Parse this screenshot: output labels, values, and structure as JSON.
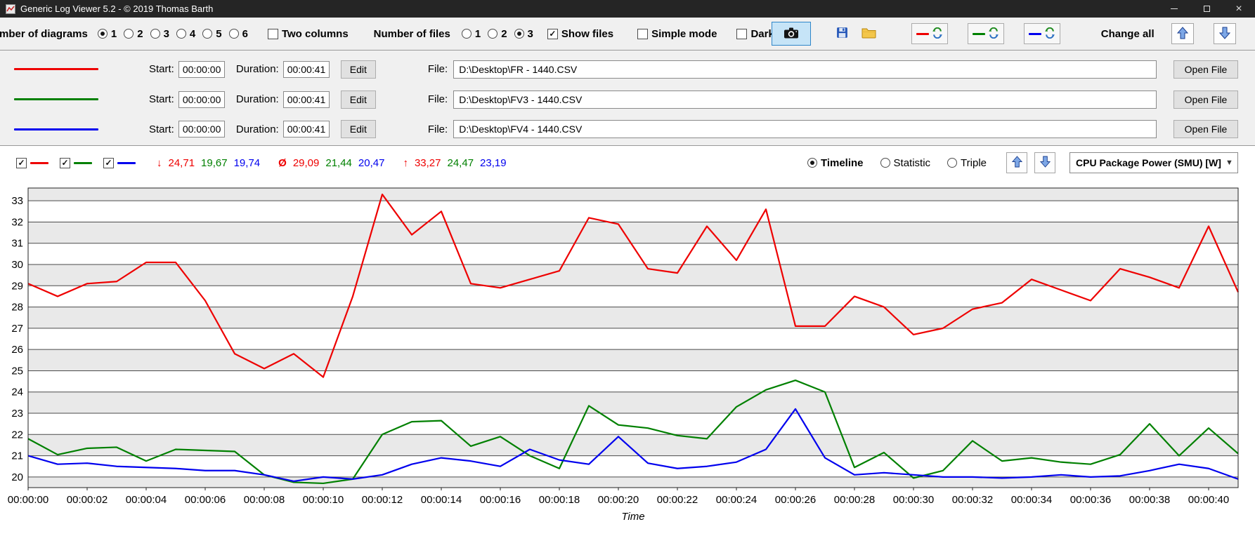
{
  "window": {
    "title": "Generic Log Viewer 5.2 - © 2019 Thomas Barth",
    "controls": {
      "close": "×"
    }
  },
  "toolbar": {
    "diagrams_label": "Number of diagrams",
    "diagram_options": [
      "1",
      "2",
      "3",
      "4",
      "5",
      "6"
    ],
    "diagrams_selected": "1",
    "two_columns_label": "Two columns",
    "files_label": "Number of files",
    "file_count_options": [
      "1",
      "2",
      "3"
    ],
    "file_count_selected": "3",
    "show_files_label": "Show files",
    "show_files_checked": true,
    "simple_mode_label": "Simple mode",
    "simple_mode_checked": false,
    "dark_label": "Dark",
    "dark_checked": false,
    "change_all_label": "Change all"
  },
  "file_row_labels": {
    "start": "Start:",
    "duration": "Duration:",
    "edit": "Edit",
    "file": "File:",
    "open": "Open File"
  },
  "files": [
    {
      "color": "#ee0000",
      "start": "00:00:00",
      "duration": "00:00:41",
      "path": "D:\\Desktop\\FR - 1440.CSV"
    },
    {
      "color": "#008000",
      "start": "00:00:00",
      "duration": "00:00:41",
      "path": "D:\\Desktop\\FV3 - 1440.CSV"
    },
    {
      "color": "#0000ee",
      "start": "00:00:00",
      "duration": "00:00:41",
      "path": "D:\\Desktop\\FV4 - 1440.CSV"
    }
  ],
  "legend": {
    "series_visible": [
      true,
      true,
      true
    ],
    "min_symbol": "↓",
    "min_values": [
      "24,71",
      "19,67",
      "19,74"
    ],
    "avg_symbol": "Ø",
    "avg_values": [
      "29,09",
      "21,44",
      "20,47"
    ],
    "max_symbol": "↑",
    "max_values": [
      "33,27",
      "24,47",
      "23,19"
    ]
  },
  "view_modes": {
    "options": [
      "Timeline",
      "Statistic",
      "Triple"
    ],
    "selected": "Timeline"
  },
  "measurement": {
    "selected": "CPU Package Power (SMU) [W]"
  },
  "colors": {
    "red_series": "#ee0000",
    "green_series": "#008000",
    "blue_series": "#0000ee",
    "camera_button_highlight": "#c6e4f7",
    "band_gray": "#e9e9e9"
  },
  "chart_data": {
    "type": "line",
    "xlabel": "Time",
    "x_max_seconds": 41,
    "x_tick_step_seconds": 2,
    "x_tick_labels": [
      "00:00:00",
      "00:00:02",
      "00:00:04",
      "00:00:06",
      "00:00:08",
      "00:00:10",
      "00:00:12",
      "00:00:14",
      "00:00:16",
      "00:00:18",
      "00:00:20",
      "00:00:22",
      "00:00:24",
      "00:00:26",
      "00:00:28",
      "00:00:30",
      "00:00:32",
      "00:00:34",
      "00:00:36",
      "00:00:38",
      "00:00:40"
    ],
    "ylim": [
      19.5,
      33.6
    ],
    "yticks": [
      20,
      21,
      22,
      23,
      24,
      25,
      26,
      27,
      28,
      29,
      30,
      31,
      32,
      33
    ],
    "grid": "horizontal",
    "legend_position": "none",
    "series": [
      {
        "name": "FR - 1440.CSV",
        "color": "#ee0000",
        "values": [
          29.1,
          28.5,
          29.1,
          29.2,
          30.1,
          30.1,
          28.3,
          25.8,
          25.1,
          25.8,
          24.7,
          28.5,
          33.3,
          31.4,
          32.5,
          29.1,
          28.9,
          29.3,
          29.7,
          32.2,
          31.9,
          29.8,
          29.6,
          31.8,
          30.2,
          32.6,
          27.1,
          27.1,
          28.5,
          28.0,
          26.7,
          27.0,
          27.9,
          28.2,
          29.3,
          28.8,
          28.3,
          29.8,
          29.4,
          28.9,
          31.8,
          28.7
        ]
      },
      {
        "name": "FV3 - 1440.CSV",
        "color": "#008000",
        "values": [
          21.8,
          21.05,
          21.35,
          21.4,
          20.75,
          21.3,
          21.25,
          21.2,
          20.1,
          19.75,
          19.7,
          19.9,
          22.0,
          22.6,
          22.65,
          21.45,
          21.9,
          21.0,
          20.4,
          23.35,
          22.45,
          22.3,
          21.95,
          21.8,
          23.3,
          24.1,
          24.55,
          24.0,
          20.45,
          21.15,
          19.95,
          20.3,
          21.7,
          20.75,
          20.9,
          20.7,
          20.6,
          21.05,
          22.5,
          21.0,
          22.3,
          21.1
        ]
      },
      {
        "name": "FV4 - 1440.CSV",
        "color": "#0000ee",
        "values": [
          21.0,
          20.6,
          20.65,
          20.5,
          20.45,
          20.4,
          20.3,
          20.3,
          20.1,
          19.8,
          20.0,
          19.9,
          20.1,
          20.6,
          20.9,
          20.75,
          20.5,
          21.3,
          20.8,
          20.6,
          21.9,
          20.65,
          20.4,
          20.5,
          20.7,
          21.3,
          23.2,
          20.9,
          20.1,
          20.2,
          20.1,
          20.0,
          20.0,
          19.95,
          20.0,
          20.1,
          20.0,
          20.05,
          20.3,
          20.6,
          20.4,
          19.9
        ]
      }
    ]
  }
}
